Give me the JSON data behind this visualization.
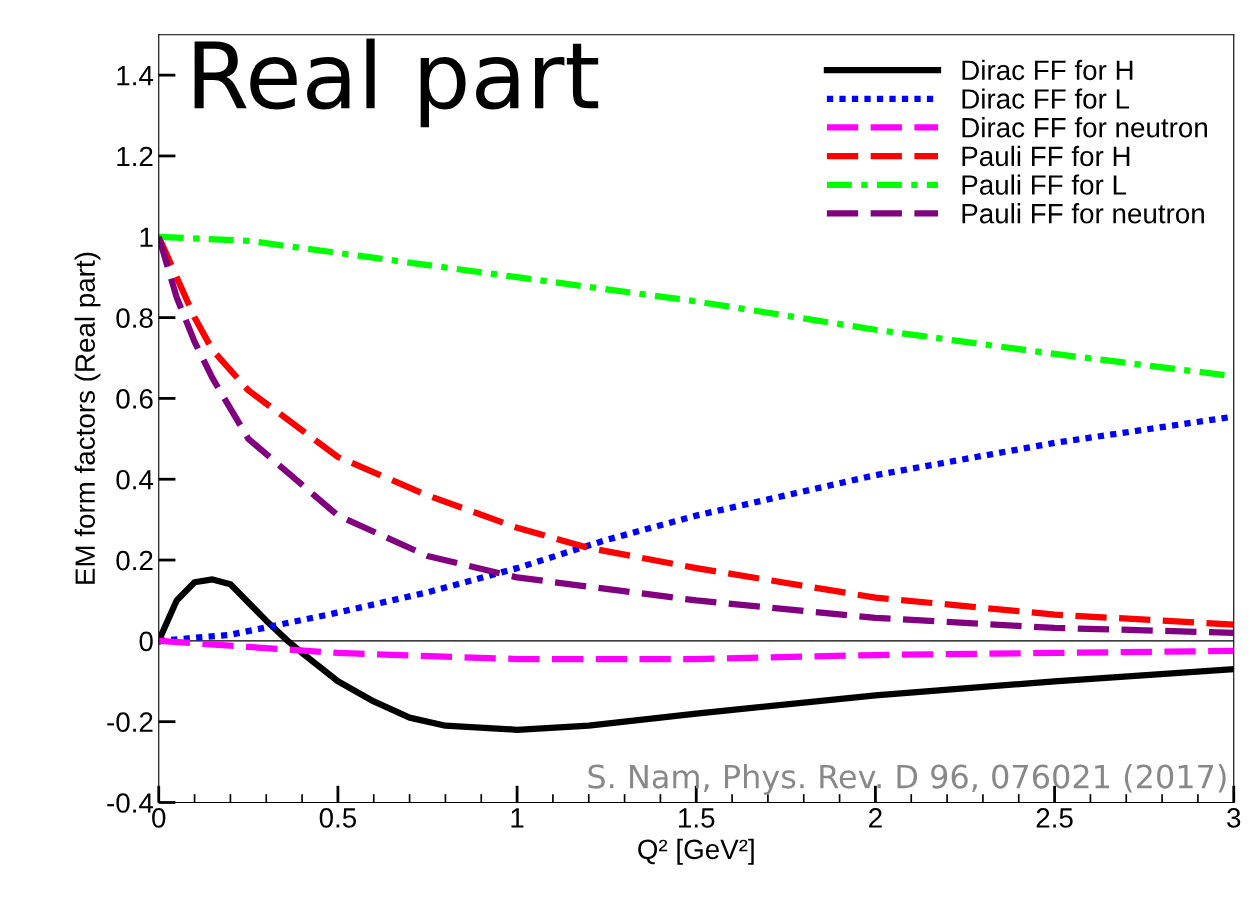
{
  "chart_data": {
    "type": "line",
    "title": "Real part",
    "xlabel": "Q² [GeV²]",
    "ylabel": "EM form factors (Real part)",
    "xlim": [
      0,
      3
    ],
    "ylim": [
      -0.4,
      1.5
    ],
    "xticks": [
      0,
      0.5,
      1,
      1.5,
      2,
      2.5,
      3
    ],
    "yticks": [
      -0.4,
      -0.2,
      0,
      0.2,
      0.4,
      0.6,
      0.8,
      1,
      1.2,
      1.4
    ],
    "grid": false,
    "legend": "top right",
    "marker": "none",
    "ref_lines": [
      {
        "axis": "y",
        "value": 0,
        "color": "#000000",
        "line_style": "solid"
      }
    ],
    "annotations": [
      "S. Nam, Phys. Rev. D 96, 076021 (2017)"
    ],
    "series": [
      {
        "name": "Dirac FF for H",
        "color": "#000000",
        "line_style": "solid",
        "x": [
          0,
          0.05,
          0.1,
          0.15,
          0.2,
          0.3,
          0.36,
          0.4,
          0.5,
          0.6,
          0.7,
          0.8,
          1.0,
          1.2,
          1.5,
          2.0,
          2.5,
          3
        ],
        "values": [
          0,
          0.1,
          0.145,
          0.152,
          0.14,
          0.05,
          0,
          -0.03,
          -0.1,
          -0.15,
          -0.19,
          -0.21,
          -0.22,
          -0.21,
          -0.18,
          -0.135,
          -0.1,
          -0.07
        ]
      },
      {
        "name": "Dirac FF for L",
        "color": "#0000ff",
        "line_style": "dotted",
        "x": [
          0,
          0.2,
          0.5,
          0.75,
          1,
          1.25,
          1.5,
          2,
          2.5,
          3
        ],
        "values": [
          0,
          0.015,
          0.07,
          0.12,
          0.18,
          0.25,
          0.31,
          0.41,
          0.49,
          0.555
        ]
      },
      {
        "name": "Dirac FF for neutron",
        "color": "#ff00ff",
        "line_style": "dashed",
        "x": [
          0,
          0.25,
          0.5,
          1,
          1.5,
          2,
          2.5,
          3
        ],
        "values": [
          0,
          -0.015,
          -0.03,
          -0.045,
          -0.045,
          -0.035,
          -0.03,
          -0.025
        ]
      },
      {
        "name": "Pauli FF for H",
        "color": "#ff0000",
        "line_style": "dashed",
        "x": [
          0,
          0.05,
          0.1,
          0.15,
          0.25,
          0.5,
          0.75,
          1,
          1.2,
          1.5,
          2,
          2.5,
          3
        ],
        "values": [
          1,
          0.9,
          0.8,
          0.72,
          0.62,
          0.455,
          0.36,
          0.28,
          0.23,
          0.18,
          0.107,
          0.065,
          0.04
        ]
      },
      {
        "name": "Pauli FF for L",
        "color": "#00ff00",
        "line_style": "dashdot",
        "x": [
          0,
          0.25,
          0.5,
          1,
          1.5,
          2,
          2.5,
          3
        ],
        "values": [
          1,
          0.99,
          0.96,
          0.9,
          0.84,
          0.77,
          0.71,
          0.655
        ]
      },
      {
        "name": "Pauli FF for neutron",
        "color": "#800080",
        "line_style": "dashed",
        "x": [
          0,
          0.05,
          0.1,
          0.15,
          0.25,
          0.5,
          0.75,
          1,
          1.5,
          2,
          2.5,
          3
        ],
        "values": [
          1,
          0.85,
          0.74,
          0.65,
          0.5,
          0.31,
          0.21,
          0.157,
          0.1,
          0.057,
          0.032,
          0.02
        ]
      }
    ]
  }
}
